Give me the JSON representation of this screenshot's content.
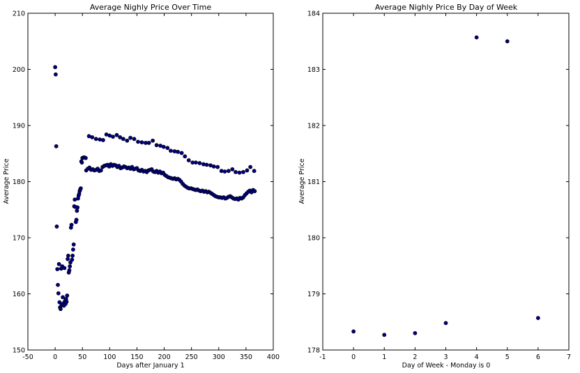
{
  "chart_data": [
    {
      "type": "scatter",
      "title": "Average Nighly Price Over Time",
      "xlabel": "Days after January 1",
      "ylabel": "Average Price",
      "xlim": [
        -50,
        400
      ],
      "ylim": [
        150,
        210
      ],
      "xticks": [
        -50,
        0,
        50,
        100,
        150,
        200,
        250,
        300,
        350,
        400
      ],
      "yticks": [
        150,
        160,
        170,
        180,
        190,
        200,
        210
      ],
      "grid": false,
      "marker_color": "#000080",
      "series_main_x": [
        0,
        1,
        2,
        3,
        4,
        5,
        6,
        7,
        8,
        9,
        10,
        11,
        12,
        13,
        14,
        15,
        16,
        17,
        18,
        19,
        20,
        21,
        22,
        23,
        24,
        25,
        26,
        27,
        28,
        29,
        30,
        31,
        32,
        33,
        34,
        35,
        36,
        37,
        38,
        39,
        40,
        41,
        42,
        43,
        44,
        45,
        46,
        47,
        48,
        49,
        50,
        52,
        54,
        56
      ],
      "series_main_y": [
        200.4,
        199.1,
        186.3,
        172.0,
        164.4,
        161.6,
        160.1,
        165.3,
        158.5,
        157.6,
        157.3,
        164.5,
        158.0,
        164.9,
        159.4,
        158.3,
        157.9,
        164.6,
        158.7,
        158.2,
        159.1,
        158.6,
        159.7,
        166.2,
        166.8,
        163.8,
        164.2,
        164.9,
        165.6,
        171.8,
        172.3,
        166.1,
        166.8,
        167.9,
        168.8,
        175.6,
        176.8,
        175.5,
        172.8,
        173.2,
        174.8,
        175.4,
        177.0,
        177.5,
        177.8,
        178.3,
        178.6,
        178.8,
        183.6,
        183.4,
        184.2,
        184.3,
        184.3,
        184.2
      ],
      "series_band1_x": [
        57,
        60,
        63,
        66,
        69,
        72,
        75,
        78,
        81,
        84,
        87,
        90,
        93,
        96,
        99,
        102,
        105,
        108,
        111,
        114,
        117,
        120,
        123,
        126,
        129,
        132,
        135,
        138,
        141,
        144,
        147,
        150,
        153,
        156,
        159,
        162,
        165,
        168,
        171,
        174,
        177,
        180,
        183,
        186,
        189,
        192,
        195,
        198,
        201,
        204,
        207,
        210,
        213,
        216,
        219,
        222,
        225,
        228,
        231,
        234,
        237,
        240,
        243,
        246,
        249,
        252,
        255,
        258,
        261,
        264,
        267,
        270,
        273,
        276,
        279,
        282,
        285,
        288,
        291,
        294,
        297,
        300,
        303,
        306,
        309,
        312,
        315,
        318,
        321,
        324,
        327,
        330,
        333,
        336,
        339,
        342,
        345,
        348,
        351,
        354,
        357,
        360,
        363,
        366
      ],
      "series_band1_y": [
        182.0,
        182.3,
        182.5,
        182.1,
        182.2,
        182.0,
        182.1,
        182.3,
        181.9,
        182.0,
        182.6,
        182.8,
        182.9,
        183.0,
        182.7,
        183.1,
        182.8,
        183.0,
        182.9,
        182.6,
        182.8,
        182.4,
        182.5,
        182.7,
        182.6,
        182.4,
        182.5,
        182.3,
        182.6,
        182.2,
        182.3,
        182.4,
        182.0,
        181.9,
        182.1,
        181.8,
        181.9,
        181.7,
        182.0,
        182.1,
        182.2,
        181.8,
        181.7,
        181.9,
        181.6,
        181.8,
        181.5,
        181.6,
        181.2,
        181.0,
        180.8,
        180.7,
        180.6,
        180.5,
        180.6,
        180.4,
        180.5,
        180.3,
        180.0,
        179.6,
        179.3,
        179.1,
        178.9,
        178.8,
        178.8,
        178.7,
        178.6,
        178.5,
        178.6,
        178.4,
        178.3,
        178.4,
        178.2,
        178.3,
        178.1,
        178.2,
        178.0,
        177.8,
        177.6,
        177.4,
        177.3,
        177.2,
        177.2,
        177.1,
        177.2,
        177.0,
        177.1,
        177.3,
        177.4,
        177.2,
        177.0,
        176.9,
        177.0,
        176.8,
        177.1,
        177.0,
        177.2,
        177.6,
        177.9,
        178.2,
        178.4,
        178.1,
        178.5,
        178.3
      ],
      "series_band2_x": [
        62,
        68,
        75,
        82,
        88,
        94,
        100,
        106,
        113,
        119,
        125,
        132,
        138,
        145,
        152,
        159,
        166,
        172,
        179,
        186,
        193,
        199,
        206,
        212,
        219,
        225,
        232,
        238,
        245,
        252,
        258,
        265,
        272,
        278,
        285,
        291,
        298,
        305,
        311,
        318,
        325,
        331,
        338,
        345,
        352,
        358,
        365
      ],
      "series_band2_y": [
        188.1,
        187.9,
        187.6,
        187.5,
        187.4,
        188.4,
        188.2,
        188.0,
        188.3,
        187.9,
        187.6,
        187.3,
        187.8,
        187.6,
        187.1,
        187.0,
        186.9,
        186.9,
        187.3,
        186.5,
        186.4,
        186.2,
        186.0,
        185.5,
        185.4,
        185.3,
        185.1,
        184.5,
        183.8,
        183.4,
        183.4,
        183.3,
        183.1,
        183.0,
        182.9,
        182.7,
        182.6,
        181.9,
        181.8,
        181.9,
        182.2,
        181.7,
        181.6,
        181.7,
        182.0,
        182.6,
        181.9
      ]
    },
    {
      "type": "scatter",
      "title": "Average Nighly Price By Day of Week",
      "xlabel": "Day of Week - Monday is 0",
      "ylabel": "Average Price",
      "xlim": [
        -1,
        7
      ],
      "ylim": [
        178,
        184
      ],
      "xticks": [
        -1,
        0,
        1,
        2,
        3,
        4,
        5,
        6,
        7
      ],
      "yticks": [
        178,
        179,
        180,
        181,
        182,
        183,
        184
      ],
      "grid": false,
      "marker_color": "#000080",
      "x": [
        0,
        1,
        2,
        3,
        4,
        5,
        6
      ],
      "y": [
        178.33,
        178.27,
        178.3,
        178.48,
        183.57,
        183.5,
        178.57
      ]
    }
  ]
}
